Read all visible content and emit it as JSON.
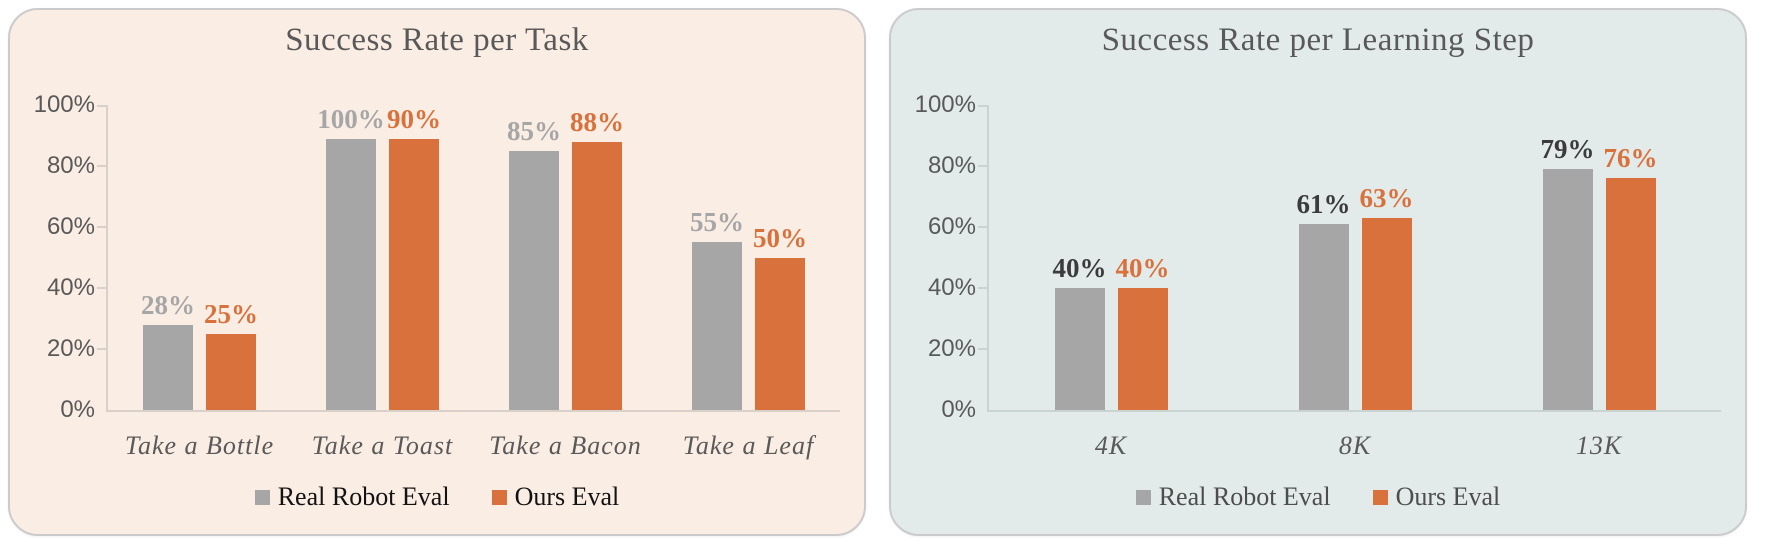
{
  "chart_data": [
    {
      "type": "bar",
      "title": "Success Rate per Task",
      "categories": [
        "Take a Bottle",
        "Take a Toast",
        "Take a Bacon",
        "Take a Leaf"
      ],
      "series": [
        {
          "name": "Real Robot Eval",
          "values": [
            28,
            100,
            85,
            55
          ],
          "labels": [
            "28%",
            "100%",
            "85%",
            "55%"
          ],
          "color": "#A6A6A6",
          "label_color": "#A6A6A6"
        },
        {
          "name": "Ours Eval",
          "values": [
            25,
            90,
            88,
            50
          ],
          "labels": [
            "25%",
            "90%",
            "88%",
            "50%"
          ],
          "color": "#D8713C",
          "label_color": "#D8713C"
        }
      ],
      "y_ticks": [
        "100%",
        "80%",
        "60%",
        "40%",
        "20%",
        "0%"
      ],
      "ylim": [
        0,
        100
      ],
      "grid": false,
      "legend_position": "bottom",
      "panel_bg": "#FAEDE4",
      "axis_color": "#D8D0C9",
      "legend_text_color": "#121212"
    },
    {
      "type": "bar",
      "title": "Success Rate per Learning Step",
      "categories": [
        "4K",
        "8K",
        "13K"
      ],
      "series": [
        {
          "name": "Real Robot Eval",
          "values": [
            40,
            61,
            79
          ],
          "labels": [
            "40%",
            "61%",
            "79%"
          ],
          "color": "#A6A6A6",
          "label_color": "#3B3B3B"
        },
        {
          "name": "Ours Eval",
          "values": [
            40,
            63,
            76
          ],
          "labels": [
            "40%",
            "63%",
            "76%"
          ],
          "color": "#D8713C",
          "label_color": "#D8713C"
        }
      ],
      "y_ticks": [
        "100%",
        "80%",
        "60%",
        "40%",
        "20%",
        "0%"
      ],
      "ylim": [
        0,
        100
      ],
      "grid": false,
      "legend_position": "bottom",
      "panel_bg": "#E2EBE9",
      "axis_color": "#C9D3D1",
      "legend_text_color": "#4D4D4D"
    }
  ]
}
